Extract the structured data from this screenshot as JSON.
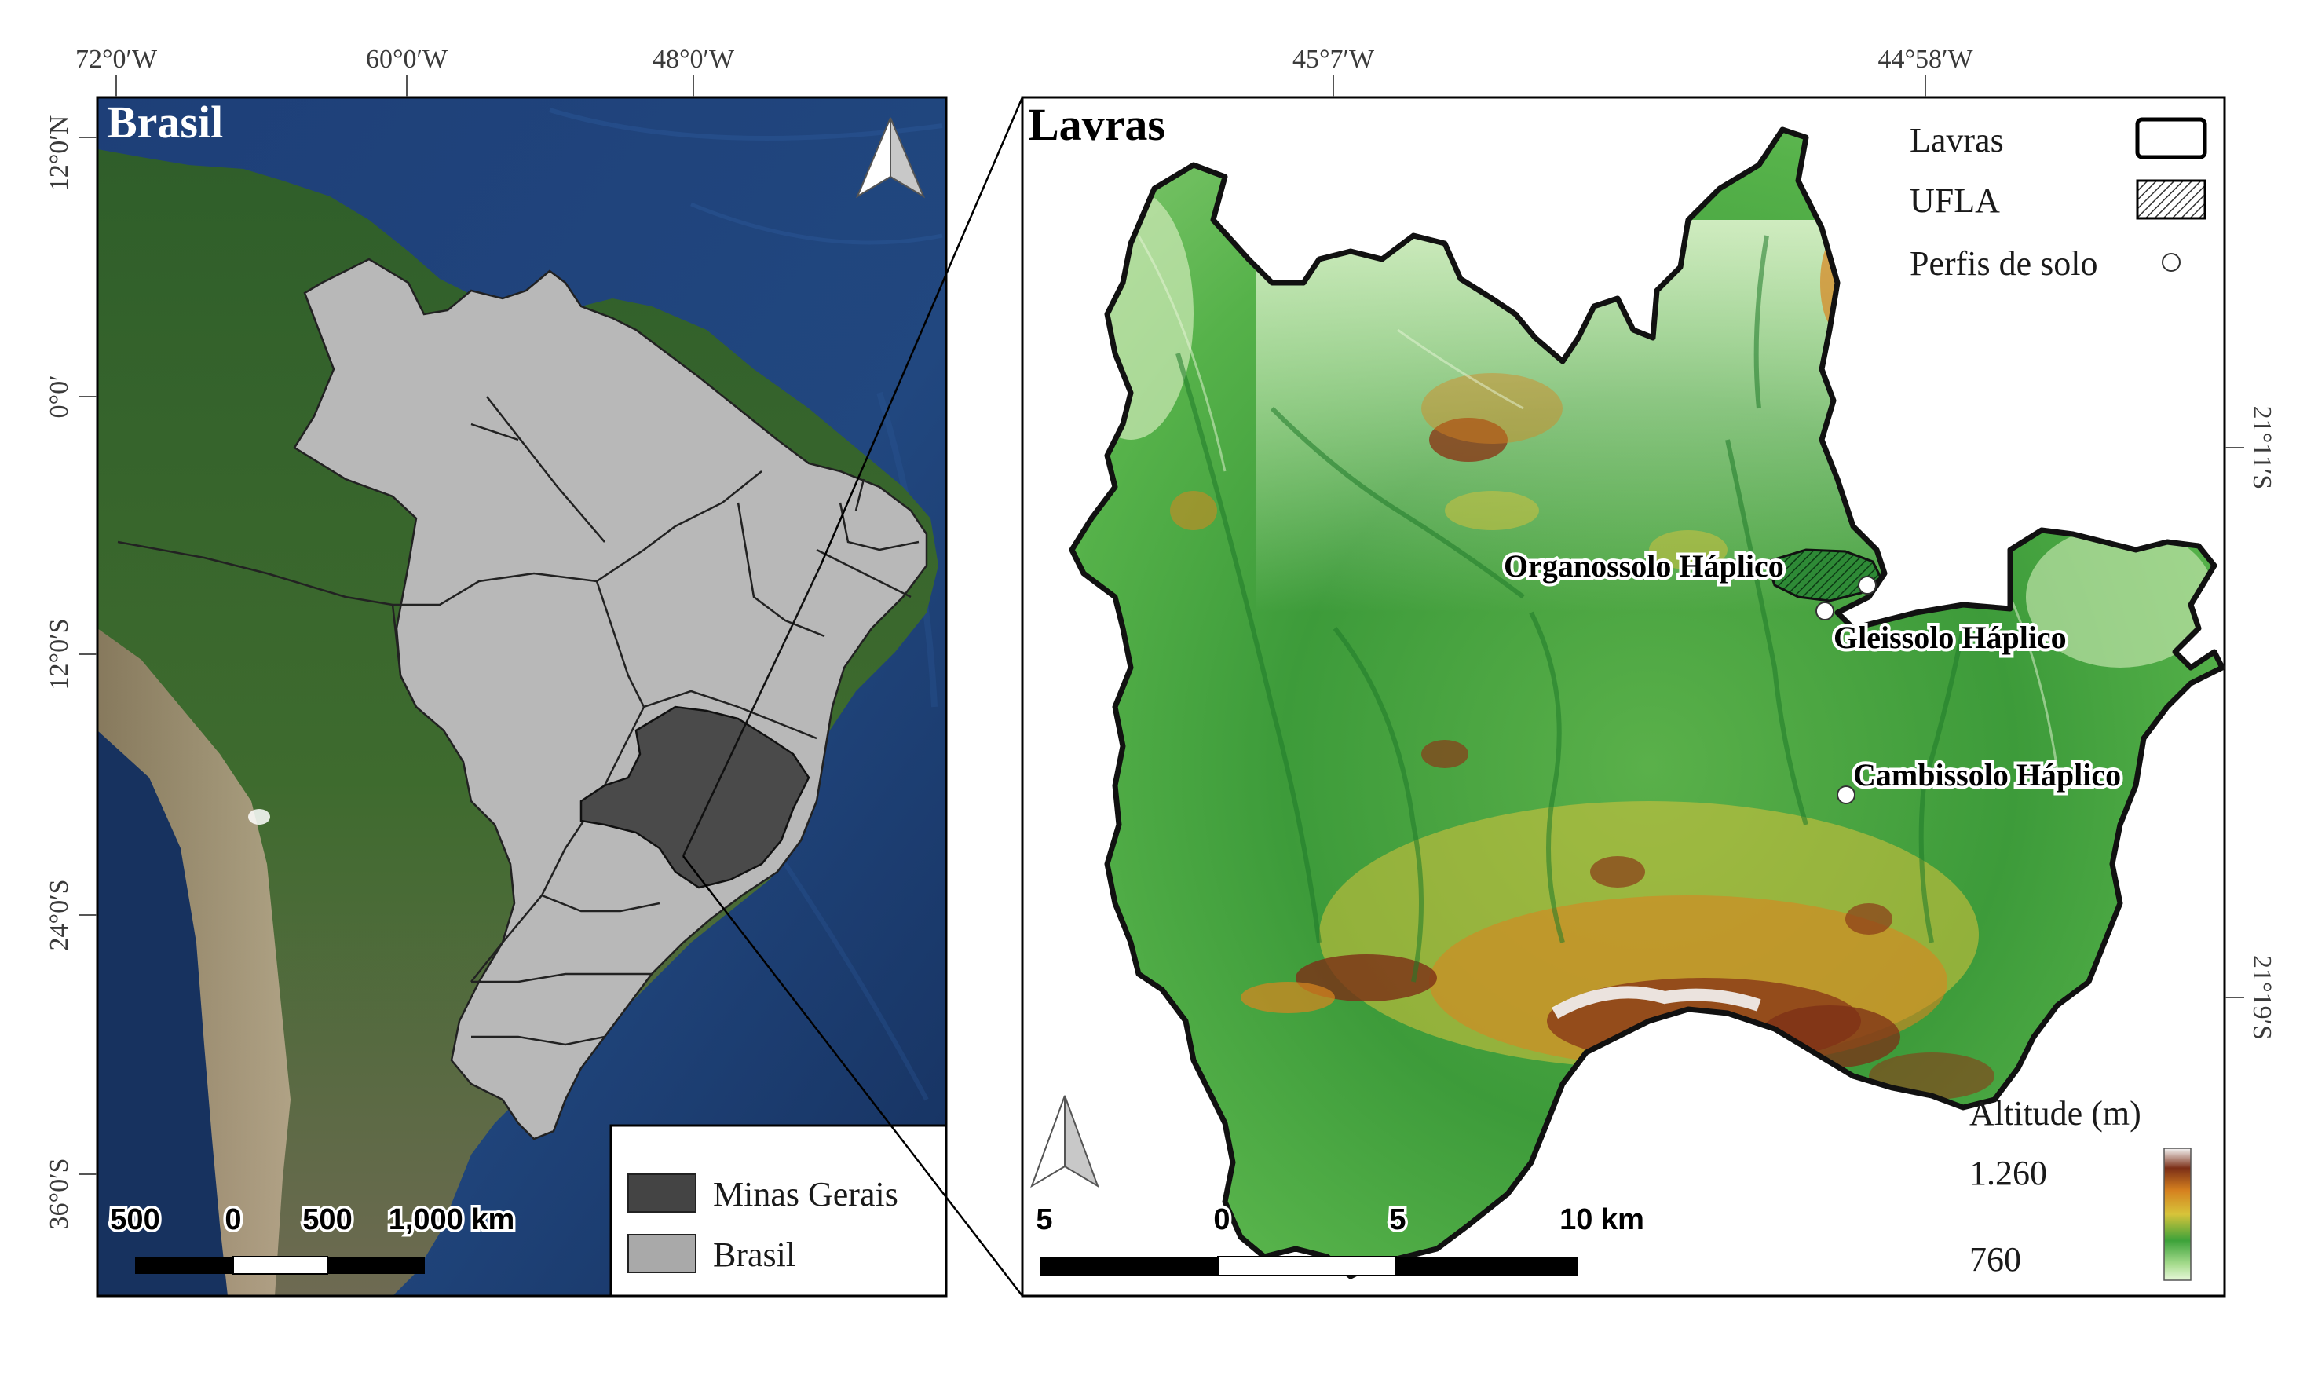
{
  "left_panel": {
    "title": "Brasil",
    "top_ticks": [
      "72°0′W",
      "60°0′W",
      "48°0′W"
    ],
    "left_ticks": [
      "12°0′N",
      "0°0′",
      "12°0′S",
      "24°0′S",
      "36°0′S"
    ],
    "scale_labels": [
      "500",
      "0",
      "500",
      "1,000 km"
    ],
    "legend": {
      "items": [
        {
          "label": "Minas Gerais",
          "color": "#444444"
        },
        {
          "label": "Brasil",
          "color": "#a9a9a9"
        }
      ]
    },
    "colors": {
      "ocean": "#1d3f7a",
      "brazil": "#b8b8b8",
      "minas_gerais": "#4a4a4a",
      "land": "#3f6a2c"
    }
  },
  "right_panel": {
    "title": "Lavras",
    "top_ticks": [
      "45°7′W",
      "44°58′W"
    ],
    "right_ticks": [
      "21°11′S",
      "21°19′S"
    ],
    "scale_labels": [
      "5",
      "0",
      "5",
      "10 km"
    ],
    "legend": {
      "items": [
        {
          "label": "Lavras",
          "symbol": "outline"
        },
        {
          "label": "UFLA",
          "symbol": "hatch"
        },
        {
          "label": "Perfis de solo",
          "symbol": "circle"
        }
      ]
    },
    "altitude": {
      "title": "Altitude (m)",
      "max": "1.260",
      "min": "760"
    },
    "sites": [
      {
        "name": "Organossolo Háplico"
      },
      {
        "name": "Gleissolo Háplico"
      },
      {
        "name": "Cambissolo Háplico"
      }
    ]
  }
}
